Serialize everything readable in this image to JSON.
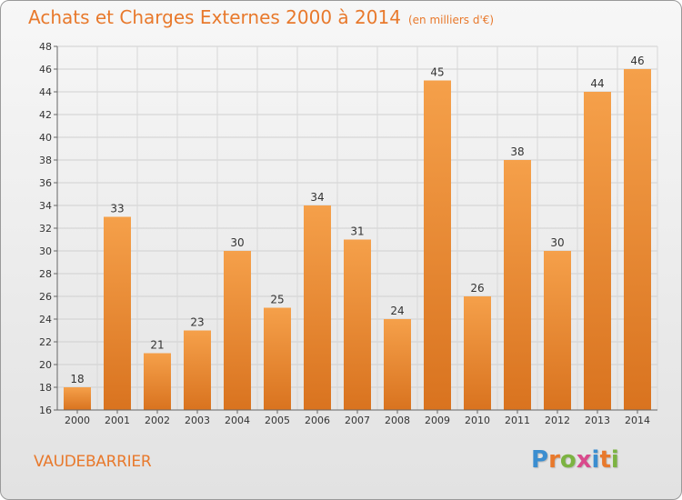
{
  "header": {
    "title": "Achats et Charges Externes 2000 à 2014",
    "subtitle": "(en milliers d'€)"
  },
  "footer": {
    "commune": "VAUDEBARRIER",
    "logo": {
      "letters": [
        "P",
        "r",
        "o",
        "x",
        "i",
        "t",
        "i"
      ],
      "colors": [
        "#3b8ed0",
        "#e8792c",
        "#7cb342",
        "#d94a8c",
        "#3b8ed0",
        "#e8792c",
        "#7cb342"
      ]
    }
  },
  "colors": {
    "bar_light": "#f5a04a",
    "bar_dark": "#d9731f",
    "accent": "#e8792c"
  },
  "chart_data": {
    "type": "bar",
    "categories": [
      "2000",
      "2001",
      "2002",
      "2003",
      "2004",
      "2005",
      "2006",
      "2007",
      "2008",
      "2009",
      "2010",
      "2011",
      "2012",
      "2013",
      "2014"
    ],
    "values": [
      18,
      33,
      21,
      23,
      30,
      25,
      34,
      31,
      24,
      45,
      26,
      38,
      30,
      44,
      46
    ],
    "ylim": [
      16,
      48
    ],
    "yticks": [
      16,
      18,
      20,
      22,
      24,
      26,
      28,
      30,
      32,
      34,
      36,
      38,
      40,
      42,
      44,
      46,
      48
    ],
    "grid": true,
    "title": "Achats et Charges Externes 2000 à 2014",
    "subtitle": "(en milliers d'€)"
  }
}
